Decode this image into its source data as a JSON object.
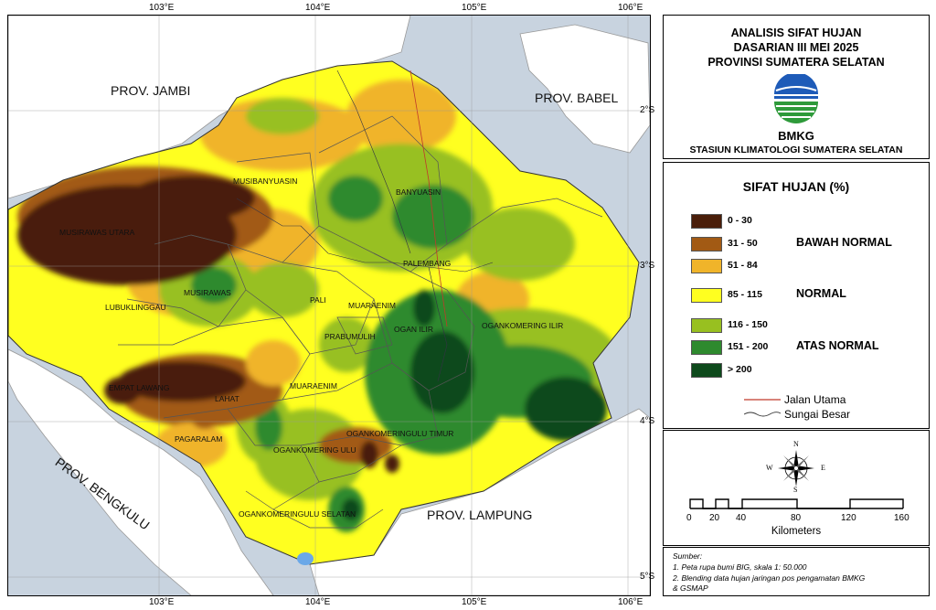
{
  "map": {
    "lon_ticks": [
      "103°E",
      "104°E",
      "105°E",
      "106°E"
    ],
    "lat_ticks": [
      "2°S",
      "3°S",
      "4°S",
      "5°S"
    ],
    "provinces": {
      "jambi": "PROV. JAMBI",
      "babel": "PROV. BABEL",
      "bengkulu": "PROV. BENGKULU",
      "lampung": "PROV. LAMPUNG"
    },
    "districts": {
      "musirawas_utara": "MUSIRAWAS UTARA",
      "musibanyuasin": "MUSIBANYUASIN",
      "banyuasin": "BANYUASIN",
      "palembang": "PALEMBANG",
      "musirawas": "MUSIRAWAS",
      "lubuklinggau": "LUBUKLINGGAU",
      "pali": "PALI",
      "muaraenim_north": "MUARAENIM",
      "ogan_ilir": "OGAN ILIR",
      "oki": "OGANKOMERING ILIR",
      "prabumulih": "PRABUMULIH",
      "empat_lawang": "EMPAT LAWANG",
      "lahat": "LAHAT",
      "muaraenim_south": "MUARAENIM",
      "oku_timur": "OGANKOMERINGULU TIMUR",
      "pagaralam": "PAGARALAM",
      "oku": "OGANKOMERING ULU",
      "oku_selatan": "OGANKOMERINGULU SELATAN"
    }
  },
  "title": {
    "line1": "ANALISIS SIFAT HUJAN",
    "line2": "DASARIAN III MEI 2025",
    "line3": "PROVINSI SUMATERA SELATAN",
    "logo_text": "BMKG",
    "station": "STASIUN KLIMATOLOGI SUMATERA SELATAN"
  },
  "legend": {
    "heading": "SIFAT HUJAN (%)",
    "classes": [
      {
        "range": "0 - 30",
        "color": "#4a1e0a"
      },
      {
        "range": "31 - 50",
        "color": "#a25a14"
      },
      {
        "range": "51 - 84",
        "color": "#f0b42a"
      },
      {
        "range": "85 - 115",
        "color": "#ffff20"
      },
      {
        "range": "116 - 150",
        "color": "#98c020"
      },
      {
        "range": "151 - 200",
        "color": "#2e8a2e"
      },
      {
        "range": "> 200",
        "color": "#0e4a1c"
      }
    ],
    "categories": {
      "below": "BAWAH NORMAL",
      "normal": "NORMAL",
      "above": "ATAS NORMAL"
    },
    "road_label": "Jalan Utama",
    "river_label": "Sungai Besar",
    "road_color": "#c0392b"
  },
  "scale": {
    "compass": {
      "n": "N",
      "s": "S",
      "e": "E",
      "w": "W"
    },
    "ticks": [
      "0",
      "20",
      "40",
      "80",
      "120",
      "160"
    ],
    "unit": "Kilometers"
  },
  "source": {
    "heading": "Sumber:",
    "line1": "1. Peta rupa bumi BIG, skala 1: 50.000",
    "line2": "2. Blending data hujan jaringan pos pengamatan BMKG",
    "line3": "& GSMAP"
  }
}
